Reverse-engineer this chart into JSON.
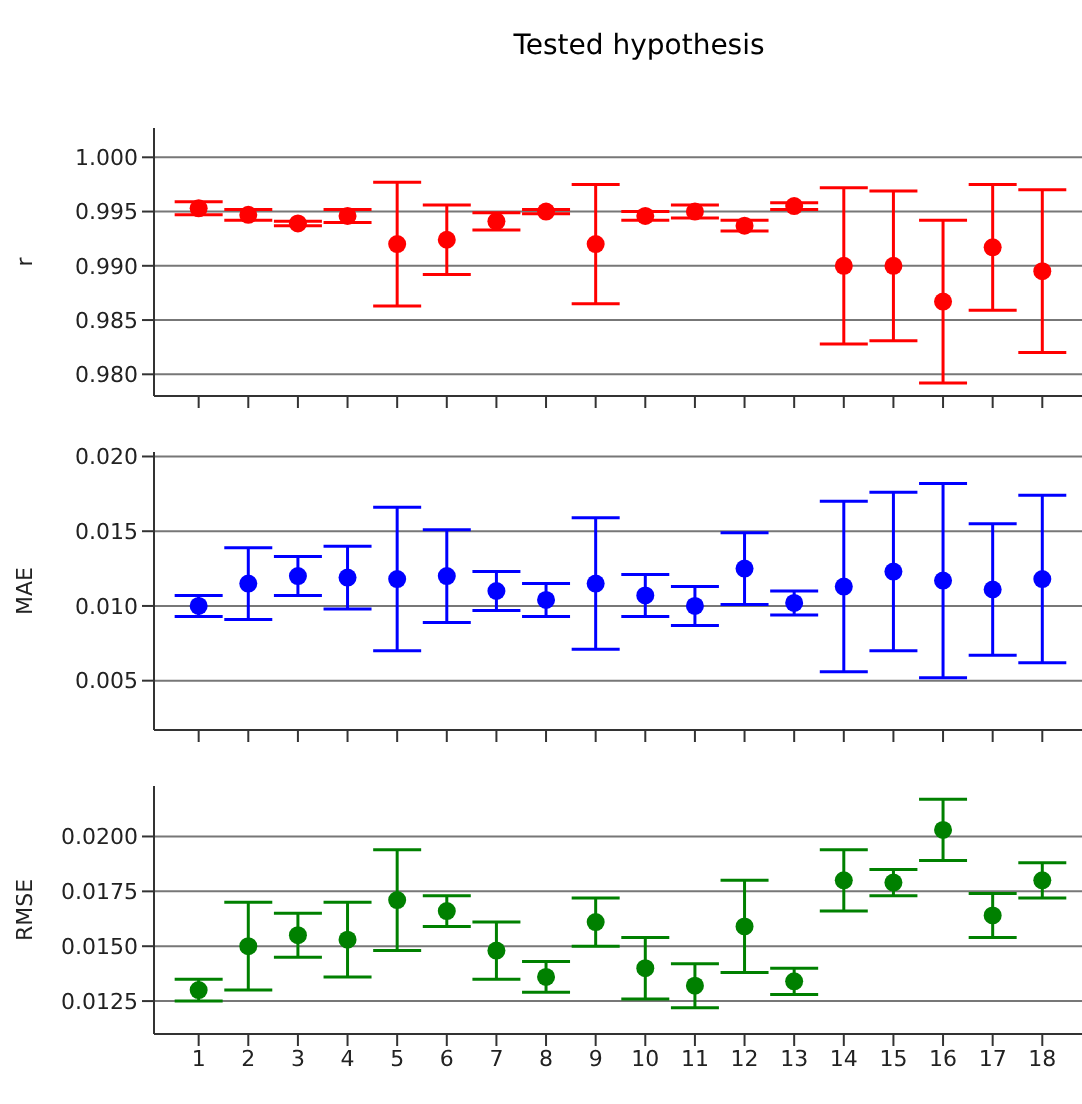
{
  "chart_data": [
    {
      "type": "scatter",
      "title": "Tested hypothesis",
      "ylabel": "r",
      "x": [
        1,
        2,
        3,
        4,
        5,
        6,
        7,
        8,
        9,
        10,
        11,
        12,
        13,
        14,
        15,
        16,
        17,
        18
      ],
      "xlim": [
        0.1,
        18.8
      ],
      "xticks": [
        {
          "value": 1,
          "label": null
        },
        {
          "value": 2,
          "label": null
        },
        {
          "value": 3,
          "label": null
        },
        {
          "value": 4,
          "label": null
        },
        {
          "value": 5,
          "label": null
        },
        {
          "value": 6,
          "label": null
        },
        {
          "value": 7,
          "label": null
        },
        {
          "value": 8,
          "label": null
        },
        {
          "value": 9,
          "label": null
        },
        {
          "value": 10,
          "label": null
        },
        {
          "value": 11,
          "label": null
        },
        {
          "value": 12,
          "label": null
        },
        {
          "value": 13,
          "label": null
        },
        {
          "value": 14,
          "label": null
        },
        {
          "value": 15,
          "label": null
        },
        {
          "value": 16,
          "label": null
        },
        {
          "value": 17,
          "label": null
        },
        {
          "value": 18,
          "label": null
        }
      ],
      "tick_labels": "y",
      "ylim": [
        0.978,
        1.0027
      ],
      "yticks": [
        {
          "value": 0.98,
          "label": "0.980"
        },
        {
          "value": 0.985,
          "label": "0.985"
        },
        {
          "value": 0.99,
          "label": "0.990"
        },
        {
          "value": 0.995,
          "label": "0.995"
        },
        {
          "value": 1.0,
          "label": "1.000"
        }
      ],
      "grid": "y",
      "marker": "circle",
      "series": [
        {
          "color": "#ff0000",
          "values": [
            0.9953,
            0.9947,
            0.9939,
            0.9946,
            0.992,
            0.9924,
            0.9941,
            0.995,
            0.992,
            0.9946,
            0.995,
            0.9937,
            0.9955,
            0.99,
            0.99,
            0.9867,
            0.9917,
            0.9895
          ],
          "errors": [
            0.0006,
            0.0005,
            0.0002,
            0.0006,
            0.0057,
            0.0032,
            0.0008,
            0.0002,
            0.0055,
            0.0004,
            0.0006,
            0.0005,
            0.0003,
            0.0072,
            0.0069,
            0.0075,
            0.0058,
            0.0075
          ]
        }
      ]
    },
    {
      "type": "scatter",
      "ylabel": "MAE",
      "x": [
        1,
        2,
        3,
        4,
        5,
        6,
        7,
        8,
        9,
        10,
        11,
        12,
        13,
        14,
        15,
        16,
        17,
        18
      ],
      "xlim": [
        0.1,
        18.8
      ],
      "xticks": [
        {
          "value": 1,
          "label": null
        },
        {
          "value": 2,
          "label": null
        },
        {
          "value": 3,
          "label": null
        },
        {
          "value": 4,
          "label": null
        },
        {
          "value": 5,
          "label": null
        },
        {
          "value": 6,
          "label": null
        },
        {
          "value": 7,
          "label": null
        },
        {
          "value": 8,
          "label": null
        },
        {
          "value": 9,
          "label": null
        },
        {
          "value": 10,
          "label": null
        },
        {
          "value": 11,
          "label": null
        },
        {
          "value": 12,
          "label": null
        },
        {
          "value": 13,
          "label": null
        },
        {
          "value": 14,
          "label": null
        },
        {
          "value": 15,
          "label": null
        },
        {
          "value": 16,
          "label": null
        },
        {
          "value": 17,
          "label": null
        },
        {
          "value": 18,
          "label": null
        }
      ],
      "tick_labels": "y",
      "ylim": [
        0.0017,
        0.0203
      ],
      "yticks": [
        {
          "value": 0.005,
          "label": "0.005"
        },
        {
          "value": 0.01,
          "label": "0.010"
        },
        {
          "value": 0.015,
          "label": "0.015"
        },
        {
          "value": 0.02,
          "label": "0.020"
        }
      ],
      "grid": "y",
      "marker": "circle",
      "series": [
        {
          "color": "#0000ff",
          "values": [
            0.01,
            0.0115,
            0.012,
            0.0119,
            0.0118,
            0.012,
            0.011,
            0.0104,
            0.0115,
            0.0107,
            0.01,
            0.0125,
            0.0102,
            0.0113,
            0.0123,
            0.0117,
            0.0111,
            0.0118
          ],
          "errors": [
            0.0007,
            0.0024,
            0.0013,
            0.0021,
            0.0048,
            0.0031,
            0.0013,
            0.0011,
            0.0044,
            0.0014,
            0.0013,
            0.0024,
            0.0008,
            0.0057,
            0.0053,
            0.0065,
            0.0044,
            0.0056
          ]
        }
      ]
    },
    {
      "type": "scatter",
      "ylabel": "RMSE",
      "x": [
        1,
        2,
        3,
        4,
        5,
        6,
        7,
        8,
        9,
        10,
        11,
        12,
        13,
        14,
        15,
        16,
        17,
        18
      ],
      "xlim": [
        0.1,
        18.8
      ],
      "xticks": [
        1,
        2,
        3,
        4,
        5,
        6,
        7,
        8,
        9,
        10,
        11,
        12,
        13,
        14,
        15,
        16,
        17,
        18
      ],
      "ylim": [
        0.011,
        0.0223
      ],
      "yticks": [
        {
          "value": 0.0125,
          "label": "0.0125"
        },
        {
          "value": 0.015,
          "label": "0.0150"
        },
        {
          "value": 0.0175,
          "label": "0.0175"
        },
        {
          "value": 0.02,
          "label": "0.0200"
        }
      ],
      "grid": "y",
      "marker": "circle",
      "series": [
        {
          "color": "#008000",
          "values": [
            0.013,
            0.015,
            0.0155,
            0.0153,
            0.0171,
            0.0166,
            0.0148,
            0.0136,
            0.0161,
            0.014,
            0.0132,
            0.0159,
            0.0134,
            0.018,
            0.0179,
            0.0203,
            0.0164,
            0.018
          ],
          "errors": [
            0.0005,
            0.002,
            0.001,
            0.0017,
            0.0023,
            0.0007,
            0.0013,
            0.0007,
            0.0011,
            0.0014,
            0.001,
            0.0021,
            0.0006,
            0.0014,
            0.0006,
            0.0014,
            0.001,
            0.0008
          ]
        }
      ]
    }
  ]
}
